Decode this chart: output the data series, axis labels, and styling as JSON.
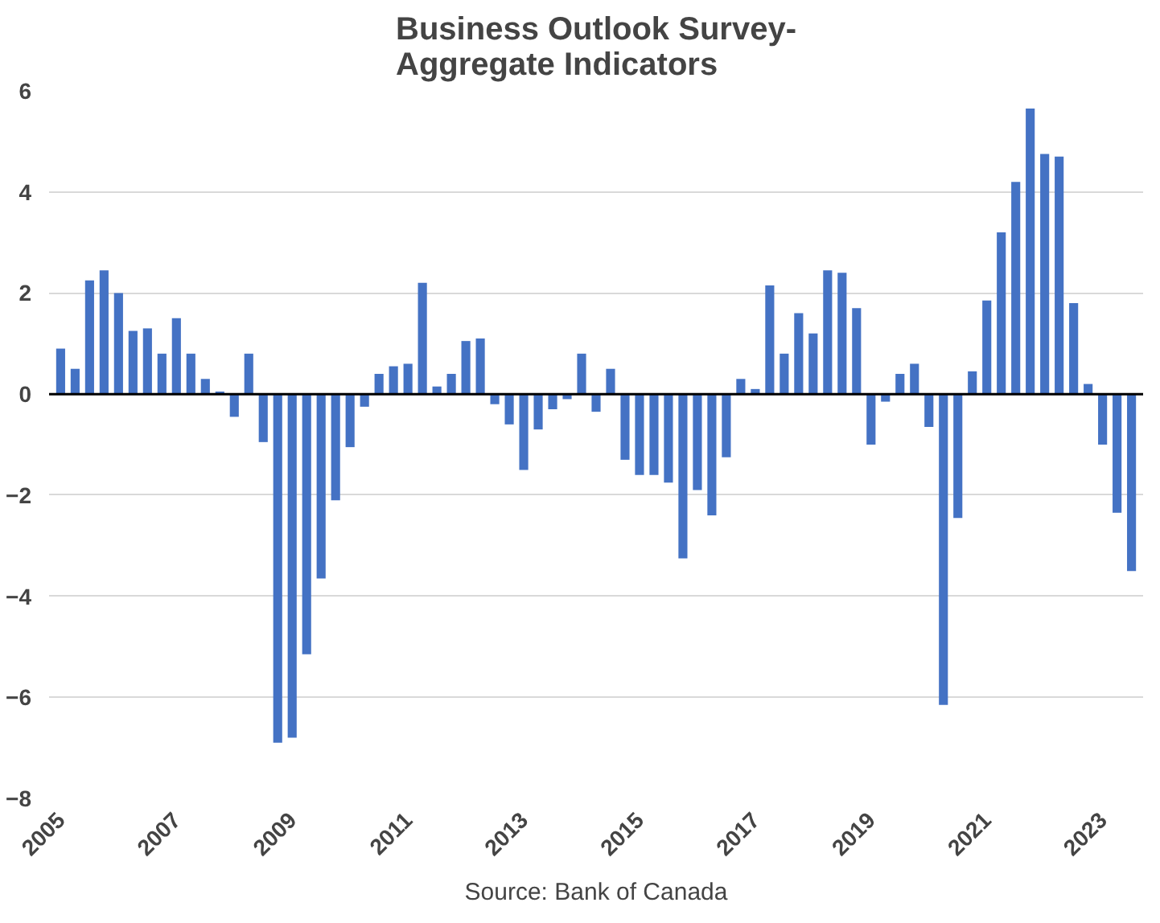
{
  "chart_data": {
    "type": "bar",
    "title": "Business Outlook Survey-\nAggregate Indicators",
    "categories": [
      "2005",
      null,
      null,
      null,
      null,
      null,
      null,
      null,
      "2007",
      null,
      null,
      null,
      null,
      null,
      null,
      null,
      "2009",
      null,
      null,
      null,
      null,
      null,
      null,
      null,
      "2011",
      null,
      null,
      null,
      null,
      null,
      null,
      null,
      "2013",
      null,
      null,
      null,
      null,
      null,
      null,
      null,
      "2015",
      null,
      null,
      null,
      null,
      null,
      null,
      null,
      "2017",
      null,
      null,
      null,
      null,
      null,
      null,
      null,
      "2019",
      null,
      null,
      null,
      null,
      null,
      null,
      null,
      "2021",
      null,
      null,
      null,
      null,
      null,
      null,
      null,
      "2023",
      null,
      null
    ],
    "values": [
      0.9,
      0.5,
      2.25,
      2.45,
      2.0,
      1.25,
      1.3,
      0.8,
      1.5,
      0.8,
      0.3,
      0.05,
      -0.45,
      0.8,
      -0.95,
      -6.9,
      -6.8,
      -5.15,
      -3.65,
      -2.1,
      -1.05,
      -0.25,
      0.4,
      0.55,
      0.6,
      2.2,
      0.15,
      0.4,
      1.05,
      1.1,
      -0.2,
      -0.6,
      -1.5,
      -0.7,
      -0.3,
      -0.1,
      0.8,
      -0.35,
      0.5,
      -1.3,
      -1.6,
      -1.6,
      -1.75,
      -3.25,
      -1.9,
      -2.4,
      -1.25,
      0.3,
      0.1,
      2.15,
      0.8,
      1.6,
      1.2,
      2.45,
      2.4,
      1.7,
      -1.0,
      -0.15,
      0.4,
      0.6,
      -0.65,
      -6.15,
      -2.45,
      0.45,
      1.85,
      3.2,
      4.2,
      5.65,
      4.75,
      4.7,
      1.8,
      0.2,
      -1.0,
      -2.35,
      -3.5
    ],
    "color": "#4472c4",
    "ylim": [
      -8,
      6
    ],
    "yticks": [
      -8,
      -6,
      -4,
      -2,
      0,
      2,
      4,
      6
    ],
    "grid": "y",
    "annotations": [
      "Source: Bank of Canada"
    ]
  }
}
